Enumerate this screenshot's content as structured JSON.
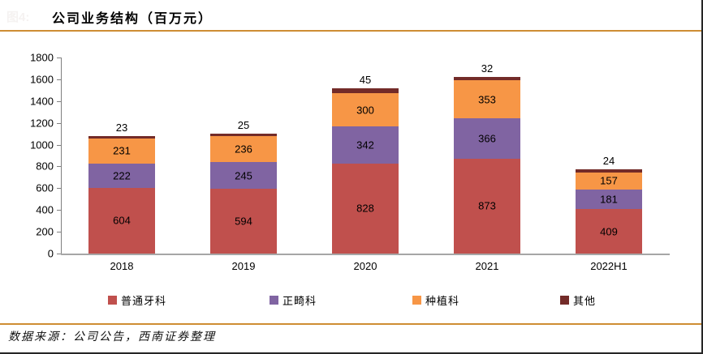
{
  "header": {
    "figure_label": "图4:",
    "title": "公司业务结构（百万元）"
  },
  "colors": {
    "accent_rule": "#ce8d33",
    "axis": "#a6a6a6",
    "series_putong": "#c0504d",
    "series_zhengji": "#8064a2",
    "series_zhongzhi": "#f79646",
    "series_qita": "#732b28"
  },
  "chart_data": {
    "type": "bar",
    "stacked": true,
    "title": "公司业务结构（百万元）",
    "categories": [
      "2018",
      "2019",
      "2020",
      "2021",
      "2022H1"
    ],
    "series": [
      {
        "name": "普通牙科",
        "color": "#c0504d",
        "values": [
          604,
          594,
          828,
          873,
          409
        ],
        "label_position": "inside"
      },
      {
        "name": "正畸科",
        "color": "#8064a2",
        "values": [
          222,
          245,
          342,
          366,
          181
        ],
        "label_position": "inside"
      },
      {
        "name": "种植科",
        "color": "#f79646",
        "values": [
          231,
          236,
          300,
          353,
          157
        ],
        "label_position": "inside"
      },
      {
        "name": "其他",
        "color": "#732b28",
        "values": [
          23,
          25,
          45,
          32,
          24
        ],
        "label_position": "above"
      }
    ],
    "ylim": [
      0,
      1800
    ],
    "ytick_step": 200,
    "grid": false,
    "legend_position": "bottom"
  },
  "footer": {
    "source": "数据来源：公司公告，西南证券整理"
  }
}
